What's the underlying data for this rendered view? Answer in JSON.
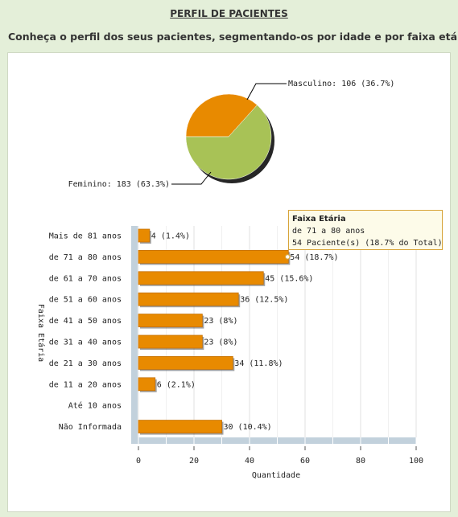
{
  "header": {
    "title": "PERFIL DE PACIENTES",
    "subtitle": "Conheça o perfil dos seus pacientes, segmentando-os por idade e por faixa etária."
  },
  "colors": {
    "orange": "#e88a00",
    "green": "#a8c256",
    "axis_band": "#c2d1dc"
  },
  "chart_data": [
    {
      "type": "pie",
      "slices": [
        {
          "label": "Masculino: 106 (36.7%)",
          "name": "Masculino",
          "value": 106,
          "percent": 36.7,
          "color": "#e88a00"
        },
        {
          "label": "Feminino: 183 (63.3%)",
          "name": "Feminino",
          "value": 183,
          "percent": 63.3,
          "color": "#a8c256"
        }
      ]
    },
    {
      "type": "bar",
      "orientation": "horizontal",
      "ylabel": "Faixa Etária",
      "xlabel": "Quantidade",
      "xlim": [
        0,
        100
      ],
      "xticks": [
        0,
        20,
        40,
        60,
        80,
        100
      ],
      "categories": [
        "Mais de 81 anos",
        "de 71 a 80 anos",
        "de 61 a 70 anos",
        "de 51 a 60 anos",
        "de 41 a 50 anos",
        "de 31 a 40 anos",
        "de 21 a 30 anos",
        "de 11 a 20 anos",
        "Até 10 anos",
        "Não Informada"
      ],
      "values": [
        4,
        54,
        45,
        36,
        23,
        23,
        34,
        6,
        0,
        30
      ],
      "labels": [
        "4 (1.4%)",
        "54 (18.7%)",
        "45 (15.6%)",
        "36 (12.5%)",
        "23 (8%)",
        "23 (8%)",
        "34 (11.8%)",
        "6 (2.1%)",
        "",
        "30 (10.4%)"
      ],
      "color": "#e88a00",
      "tooltip": {
        "title": "Faixa Etária",
        "line1": "de 71 a 80 anos",
        "line2": "54 Paciente(s) (18.7% do Total)",
        "category_index": 1
      }
    }
  ]
}
